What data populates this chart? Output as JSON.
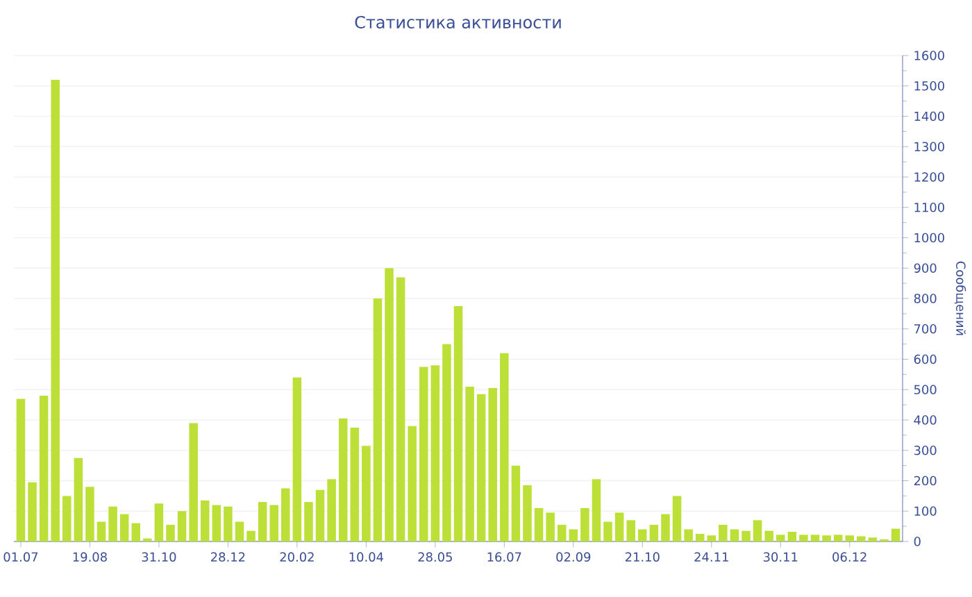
{
  "chart_data": {
    "type": "bar",
    "title": "Статистика активности",
    "ylabel": "Сообщений",
    "color": "#bde038",
    "categories": [
      "01.07",
      null,
      null,
      null,
      null,
      null,
      "19.08",
      null,
      null,
      null,
      null,
      null,
      "31.10",
      null,
      null,
      null,
      null,
      null,
      "28.12",
      null,
      null,
      null,
      null,
      null,
      "20.02",
      null,
      null,
      null,
      null,
      null,
      "10.04",
      null,
      null,
      null,
      null,
      null,
      "28.05",
      null,
      null,
      null,
      null,
      null,
      "16.07",
      null,
      null,
      null,
      null,
      null,
      "02.09",
      null,
      null,
      null,
      null,
      null,
      "21.10",
      null,
      null,
      null,
      null,
      null,
      "24.11",
      null,
      null,
      null,
      null,
      null,
      "30.11",
      null,
      null,
      null,
      null,
      null,
      "06.12",
      null,
      null,
      null,
      null
    ],
    "values": [
      470,
      195,
      480,
      1520,
      150,
      275,
      180,
      65,
      115,
      90,
      60,
      10,
      125,
      55,
      100,
      390,
      135,
      120,
      115,
      65,
      35,
      130,
      120,
      175,
      540,
      130,
      170,
      205,
      405,
      375,
      315,
      800,
      900,
      870,
      380,
      575,
      580,
      650,
      775,
      510,
      485,
      505,
      620,
      250,
      185,
      110,
      95,
      55,
      40,
      110,
      205,
      65,
      95,
      70,
      40,
      55,
      90,
      150,
      40,
      25,
      20,
      55,
      40,
      35,
      70,
      35,
      22,
      32,
      22,
      22,
      20,
      22,
      20,
      17,
      13,
      7,
      42
    ],
    "ylim": [
      0,
      1600
    ],
    "yticks": [
      0,
      100,
      200,
      300,
      400,
      500,
      600,
      700,
      800,
      900,
      1000,
      1100,
      1200,
      1300,
      1400,
      1500,
      1600
    ],
    "grid": "y"
  }
}
